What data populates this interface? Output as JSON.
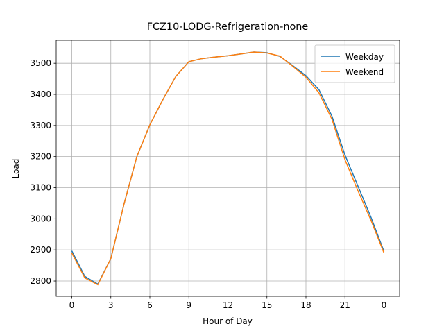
{
  "chart_data": {
    "type": "line",
    "title": "FCZ10-LODG-Refrigeration-none",
    "xlabel": "Hour of Day",
    "ylabel": "Load",
    "x": [
      0,
      1,
      2,
      3,
      4,
      5,
      6,
      7,
      8,
      9,
      10,
      11,
      12,
      13,
      14,
      15,
      16,
      17,
      18,
      19,
      20,
      21,
      22,
      23,
      24
    ],
    "series": [
      {
        "name": "Weekday",
        "color": "#1f77b4",
        "values": [
          2897,
          2815,
          2790,
          2872,
          3045,
          3200,
          3302,
          3383,
          3458,
          3505,
          3515,
          3520,
          3524,
          3530,
          3536,
          3534,
          3522,
          3492,
          3460,
          3415,
          3330,
          3205,
          3105,
          3005,
          2895
        ]
      },
      {
        "name": "Weekend",
        "color": "#ff7f0e",
        "values": [
          2890,
          2810,
          2788,
          2872,
          3045,
          3200,
          3302,
          3383,
          3458,
          3505,
          3515,
          3520,
          3524,
          3530,
          3536,
          3533,
          3523,
          3490,
          3455,
          3405,
          3320,
          3190,
          3090,
          2995,
          2890
        ]
      }
    ],
    "xlim": [
      -1.2,
      25.2
    ],
    "xticks": [
      0,
      3,
      6,
      9,
      12,
      15,
      18,
      21,
      {
        "value": 24,
        "label": "0"
      }
    ],
    "ylim": [
      2751,
      3574
    ],
    "yticks": [
      2800,
      2900,
      3000,
      3100,
      3200,
      3300,
      3400,
      3500
    ],
    "grid": true,
    "legend": "upper-right"
  }
}
